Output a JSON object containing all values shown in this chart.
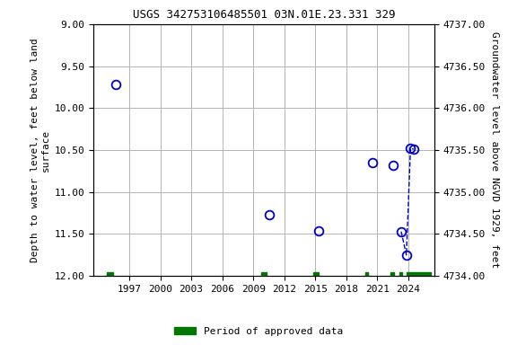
{
  "title": "USGS 342753106485501 03N.01E.23.331 329",
  "ylabel_left": "Depth to water level, feet below land\nsurface",
  "ylabel_right": "Groundwater level above NGVD 1929, feet",
  "ylim_left": [
    12.0,
    9.0
  ],
  "ylim_right": [
    4734.0,
    4737.0
  ],
  "xlim": [
    1993.5,
    2026.5
  ],
  "xticks": [
    1997,
    2000,
    2003,
    2006,
    2009,
    2012,
    2015,
    2018,
    2021,
    2024
  ],
  "yticks_left": [
    9.0,
    9.5,
    10.0,
    10.5,
    11.0,
    11.5,
    12.0
  ],
  "yticks_right": [
    4734.0,
    4734.5,
    4735.0,
    4735.5,
    4736.0,
    4736.5,
    4737.0
  ],
  "data_points": [
    {
      "year": 1995.7,
      "depth": 9.72
    },
    {
      "year": 2010.5,
      "depth": 11.27
    },
    {
      "year": 2015.3,
      "depth": 11.46
    },
    {
      "year": 2020.5,
      "depth": 10.65
    },
    {
      "year": 2022.5,
      "depth": 10.68
    },
    {
      "year": 2023.3,
      "depth": 11.47
    },
    {
      "year": 2023.8,
      "depth": 11.75
    },
    {
      "year": 2024.2,
      "depth": 10.48
    },
    {
      "year": 2024.5,
      "depth": 10.49
    }
  ],
  "connected_segment": [
    {
      "year": 2023.3,
      "depth": 11.47
    },
    {
      "year": 2023.8,
      "depth": 11.75
    },
    {
      "year": 2024.2,
      "depth": 10.48
    },
    {
      "year": 2024.5,
      "depth": 10.49
    }
  ],
  "approved_data_bars": [
    {
      "x_start": 1994.8,
      "x_end": 1995.4
    },
    {
      "x_start": 2009.8,
      "x_end": 2010.3
    },
    {
      "x_start": 2014.8,
      "x_end": 2015.3
    },
    {
      "x_start": 2019.8,
      "x_end": 2020.1
    },
    {
      "x_start": 2022.3,
      "x_end": 2022.6
    },
    {
      "x_start": 2023.1,
      "x_end": 2023.4
    },
    {
      "x_start": 2023.8,
      "x_end": 2026.2
    }
  ],
  "marker_color": "#0000cc",
  "marker_size": 7,
  "line_color": "#0000cc",
  "approved_color": "#007700",
  "background_color": "#ffffff",
  "grid_color": "#aaaaaa",
  "title_fontsize": 9,
  "label_fontsize": 8,
  "tick_fontsize": 8
}
